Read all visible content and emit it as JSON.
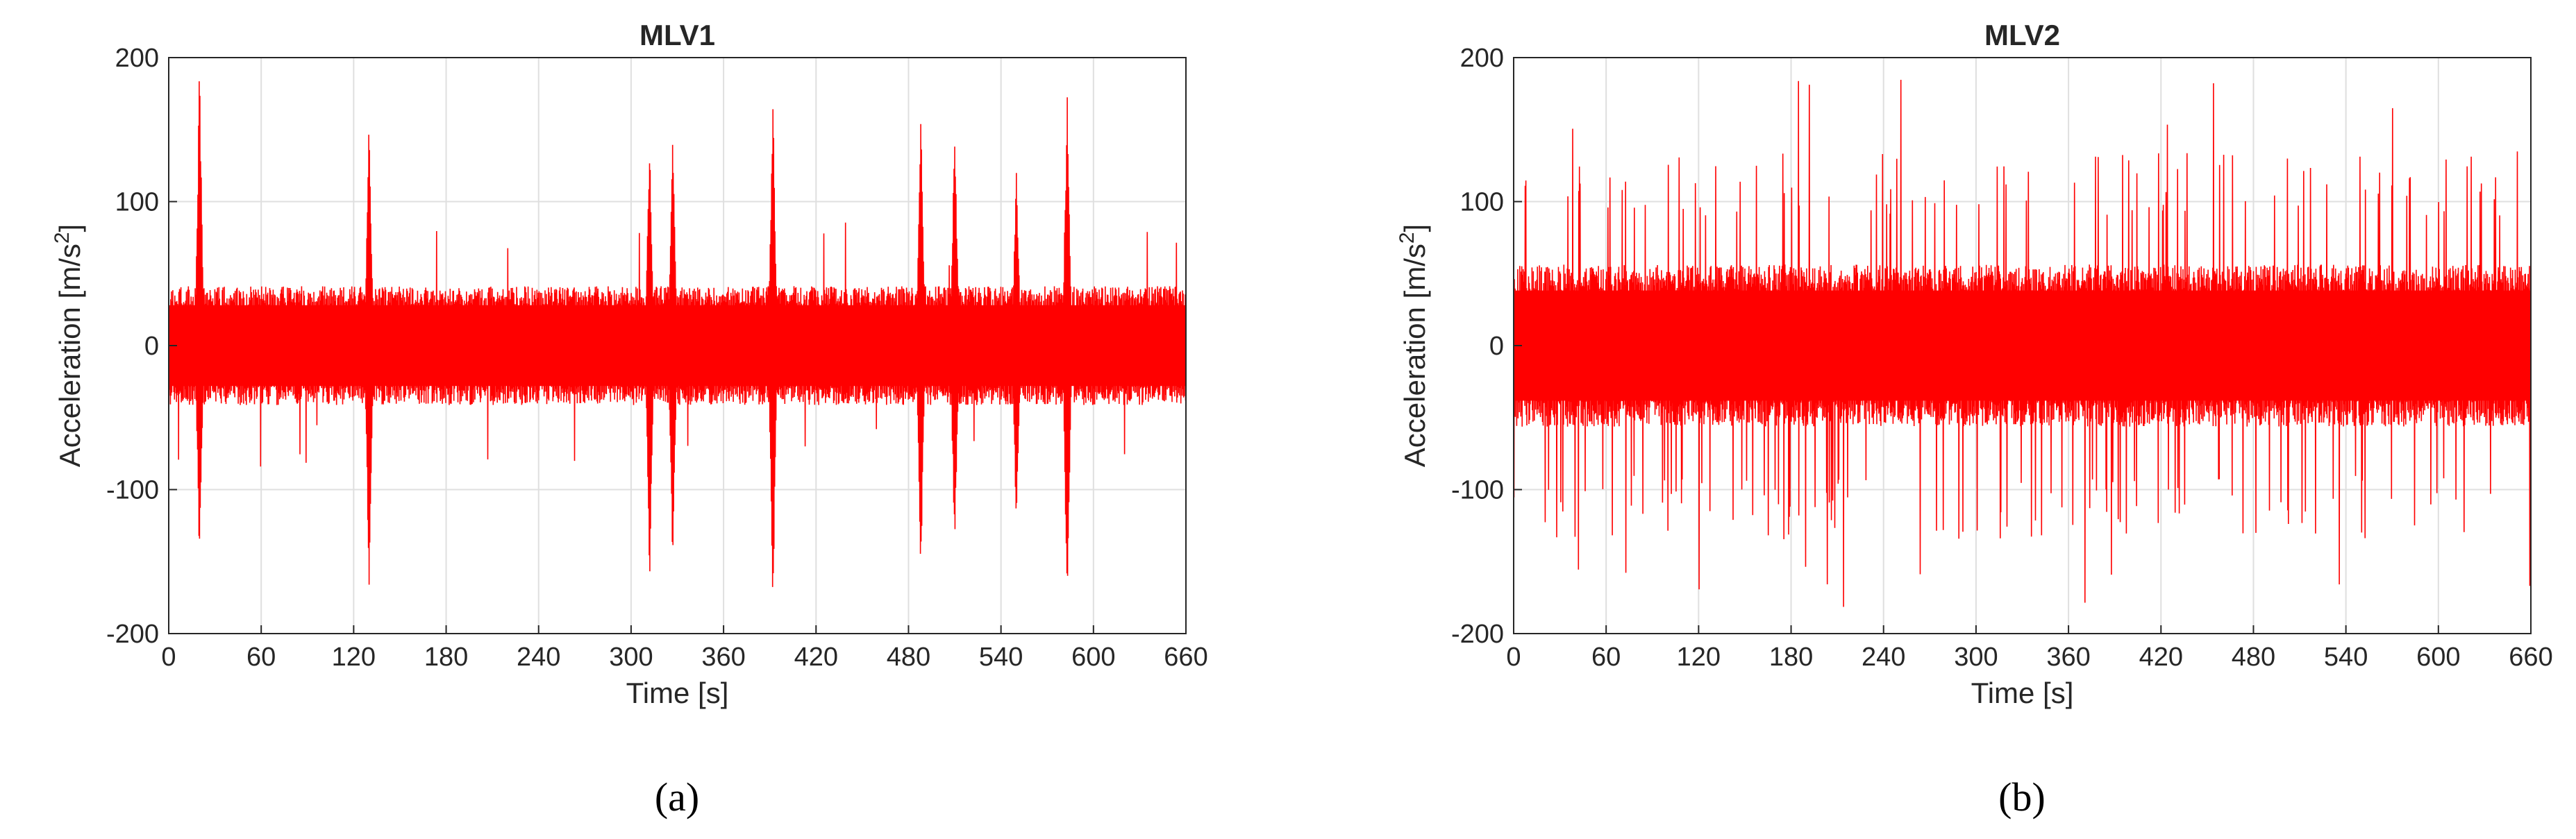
{
  "colors": {
    "signal": "#ff0000",
    "axes": "#262626",
    "grid": "#dfdfdf"
  },
  "chart_data": [
    {
      "type": "line",
      "title": "MLV1",
      "xlabel": "Time [s]",
      "ylabel_main": "Acceleration [m/s",
      "ylabel_sup": "2",
      "ylabel_end": "]",
      "caption": "(a)",
      "xlim": [
        0,
        660
      ],
      "ylim": [
        -200,
        200
      ],
      "xticks": [
        0,
        60,
        120,
        180,
        240,
        300,
        360,
        420,
        480,
        540,
        600,
        660
      ],
      "yticks": [
        -200,
        -100,
        0,
        100,
        200
      ],
      "grid": true,
      "baseline_amplitude": 33,
      "bursts": [
        {
          "t": 20,
          "pos": 200,
          "neg": -158
        },
        {
          "t": 130,
          "pos": 162,
          "neg": -180
        },
        {
          "t": 312,
          "pos": 148,
          "neg": -168
        },
        {
          "t": 327,
          "pos": 150,
          "neg": -160
        },
        {
          "t": 392,
          "pos": 178,
          "neg": -195
        },
        {
          "t": 488,
          "pos": 165,
          "neg": -165
        },
        {
          "t": 510,
          "pos": 160,
          "neg": -150
        },
        {
          "t": 550,
          "pos": 128,
          "neg": -130
        },
        {
          "t": 583,
          "pos": 180,
          "neg": -200
        }
      ]
    },
    {
      "type": "line",
      "title": "MLV2",
      "xlabel": "Time [s]",
      "ylabel_main": "Acceleration [m/s",
      "ylabel_sup": "2",
      "ylabel_end": "]",
      "caption": "(b)",
      "xlim": [
        0,
        660
      ],
      "ylim": [
        -200,
        200
      ],
      "xticks": [
        0,
        60,
        120,
        180,
        240,
        300,
        360,
        420,
        480,
        540,
        600,
        660
      ],
      "yticks": [
        -200,
        -100,
        0,
        100,
        200
      ],
      "grid": true,
      "baseline_amplitude": 45,
      "peak_range": [
        -190,
        186
      ]
    }
  ]
}
